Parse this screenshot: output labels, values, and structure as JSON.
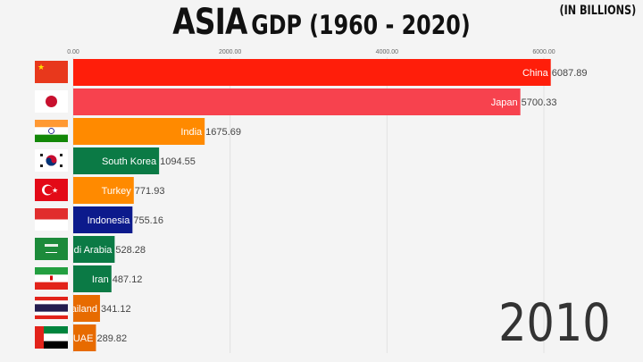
{
  "title_main": "ASIA",
  "title_rest": "GDP (1960 - 2020)",
  "units": "(IN BILLIONS)",
  "year": "2010",
  "chart_data": {
    "type": "bar",
    "orientation": "horizontal",
    "title": "ASIA GDP (1960 - 2020)",
    "xlim": [
      0,
      6000
    ],
    "x_ticks": [
      "0.00",
      "2000.00",
      "4000.00",
      "6000.00"
    ],
    "x_tick_values": [
      0,
      2000,
      4000,
      6000
    ],
    "grid": true,
    "categories": [
      "China",
      "Japan",
      "India",
      "South Korea",
      "Turkey",
      "Indonesia",
      "Saudi Arabia",
      "Iran",
      "Thailand",
      "UAE"
    ],
    "values": [
      6087.89,
      5700.33,
      1675.69,
      1094.55,
      771.93,
      755.16,
      528.28,
      487.12,
      341.12,
      289.82
    ],
    "value_labels": [
      "6087.89",
      "5700.33",
      "1675.69",
      "1094.55",
      "771.93",
      "755.16",
      "528.28",
      "487.12",
      "341.12",
      "289.82"
    ],
    "colors": [
      "#ff1e0a",
      "#f7424e",
      "#ff8a00",
      "#0b7a45",
      "#ff8a00",
      "#0c1a8c",
      "#0b7a45",
      "#0b7a45",
      "#e76b00",
      "#e76b00"
    ],
    "flags": [
      "cn",
      "jp",
      "in",
      "kr",
      "tr",
      "id",
      "sa",
      "ir",
      "th",
      "ae"
    ]
  }
}
